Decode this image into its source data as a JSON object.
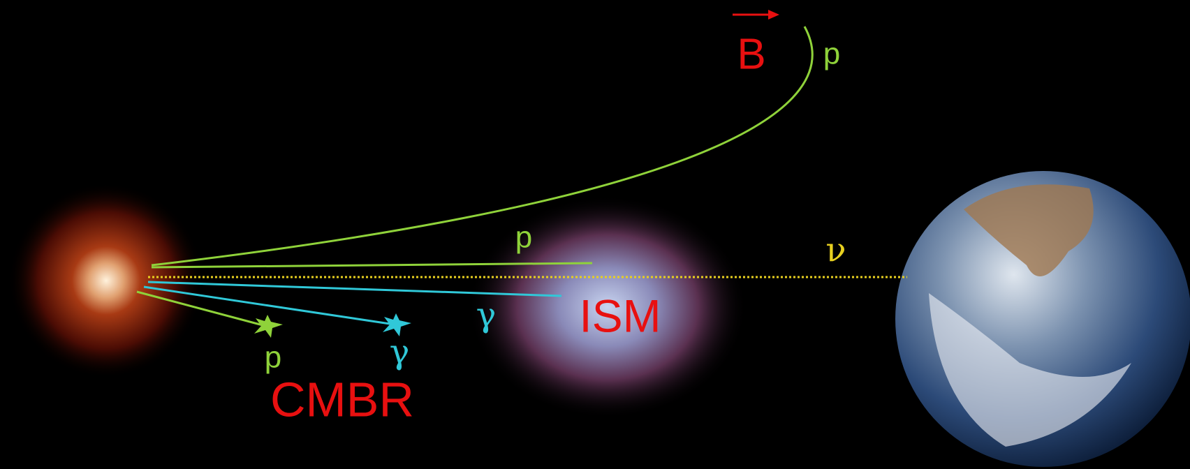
{
  "labels": {
    "magnetic_field": "B",
    "deflected_proton": "p",
    "direct_proton": "p",
    "neutrino": "ν",
    "ism_gamma": "γ",
    "ism": "ISM",
    "cmbr_proton": "p",
    "cmbr_gamma": "γ",
    "cmbr": "CMBR"
  }
}
